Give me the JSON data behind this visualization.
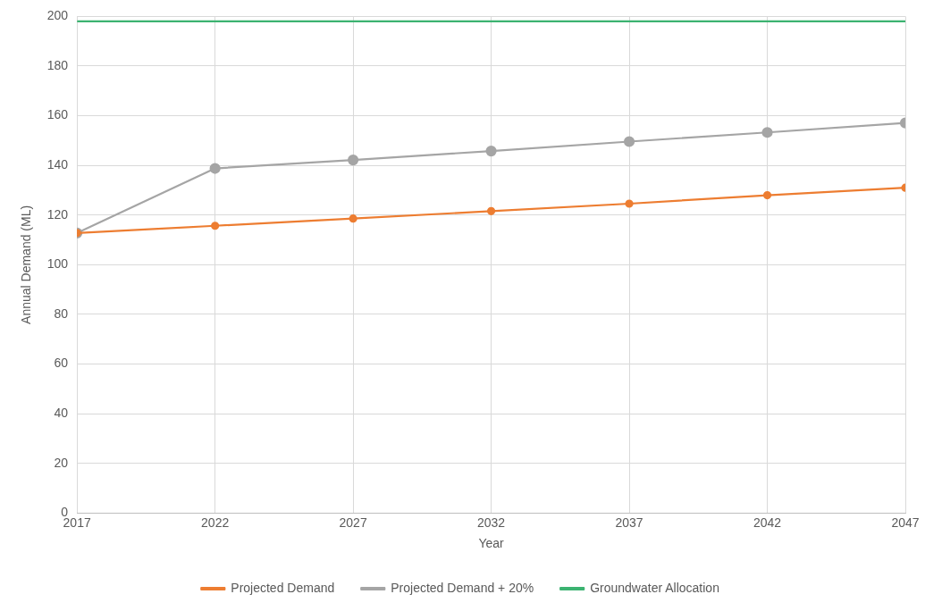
{
  "chart_data": {
    "type": "line",
    "xlabel": "Year",
    "ylabel": "Annual Demand (ML)",
    "x": [
      2017,
      2022,
      2027,
      2032,
      2037,
      2042,
      2047
    ],
    "series": [
      {
        "name": "Projected Demand",
        "color": "#ed7d31",
        "values": [
          112.8,
          115.7,
          118.6,
          121.6,
          124.6,
          128,
          131
        ],
        "marker": "circle"
      },
      {
        "name": "Projected Demand + 20%",
        "color": "#a5a5a5",
        "values": [
          112.8,
          138.8,
          142.2,
          145.8,
          149.6,
          153.3,
          157.1
        ],
        "marker": "circle"
      },
      {
        "name": "Groundwater Allocation",
        "color": "#3cb371",
        "values": [
          198,
          198,
          198,
          198,
          198,
          198,
          198
        ],
        "marker": "none"
      }
    ],
    "xlim": [
      2017,
      2047
    ],
    "xticks": [
      2017,
      2022,
      2027,
      2032,
      2037,
      2042,
      2047
    ],
    "ylim": [
      0,
      200
    ],
    "yticks": [
      0,
      20,
      40,
      60,
      80,
      100,
      120,
      140,
      160,
      180,
      200
    ],
    "grid": true,
    "legend": "bottom",
    "line_style": "solid"
  }
}
